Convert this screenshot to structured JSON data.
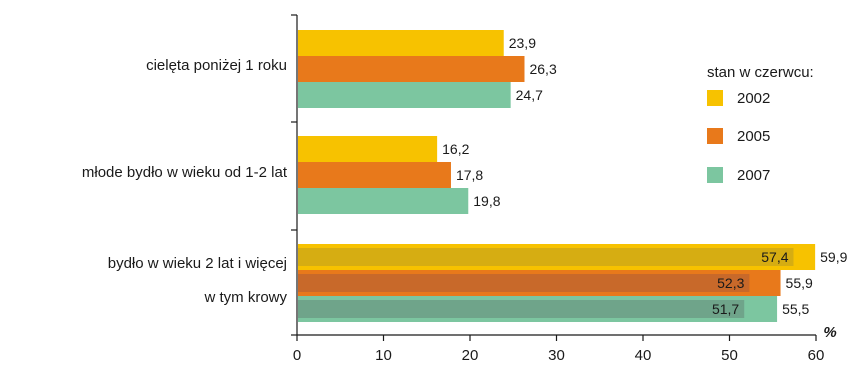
{
  "chart_data": {
    "type": "bar",
    "orientation": "horizontal",
    "categories": [
      "cielęta poniżej 1 roku",
      "młode bydło w wieku od 1-2 lat",
      "bydło w wieku 2 lat i więcej"
    ],
    "sub_category_label": "w tym krowy",
    "series": [
      {
        "name": "2002",
        "color": "#f7c200",
        "values": [
          23.9,
          16.2,
          59.9
        ],
        "value_labels": [
          "23,9",
          "16,2",
          "59,9"
        ],
        "sub_value": 57.4,
        "sub_value_label": "57,4"
      },
      {
        "name": "2005",
        "color": "#e8791b",
        "values": [
          26.3,
          17.8,
          55.9
        ],
        "value_labels": [
          "26,3",
          "17,8",
          "55,9"
        ],
        "sub_value": 52.3,
        "sub_value_label": "52,3"
      },
      {
        "name": "2007",
        "color": "#7cc6a0",
        "values": [
          24.7,
          19.8,
          55.5
        ],
        "value_labels": [
          "24,7",
          "19,8",
          "55,5"
        ],
        "sub_value": 51.7,
        "sub_value_label": "51,7"
      }
    ],
    "sub_colors": [
      "#d6ad12",
      "#c8692a",
      "#6fa48a"
    ],
    "legend_title": "stan w czerwcu:",
    "legend_position": "right",
    "xlim": [
      0,
      60
    ],
    "xticks": [
      0,
      10,
      20,
      30,
      40,
      50,
      60
    ],
    "unit_label": "%",
    "grid": false
  }
}
